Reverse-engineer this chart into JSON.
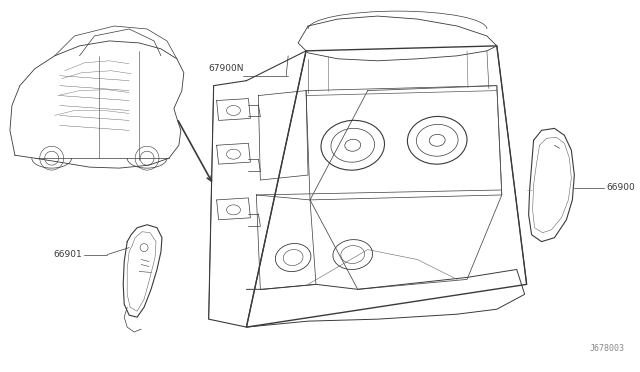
{
  "background_color": "#ffffff",
  "figure_id": "J678003",
  "parts": [
    {
      "id": "67900N"
    },
    {
      "id": "66900"
    },
    {
      "id": "66901"
    }
  ],
  "line_color": "#3a3a3a",
  "text_color": "#3a3a3a",
  "fig_id_color": "#888888",
  "lw_main": 0.8,
  "lw_inner": 0.5,
  "lw_thin": 0.4
}
